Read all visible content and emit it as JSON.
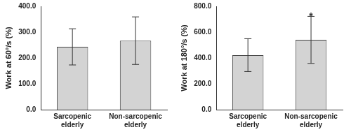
{
  "chart_data": [
    {
      "type": "bar",
      "y_label": "Work at 60°/s (%)",
      "categories": [
        "Sarcopenic elderly",
        "Non-sarcopenic elderly"
      ],
      "values": [
        243,
        267
      ],
      "errors": [
        70,
        92
      ],
      "color": "#d3d3d3",
      "ylim": [
        0,
        400
      ],
      "yticks": [
        {
          "value": 0,
          "label": "0.0"
        },
        {
          "value": 100,
          "label": "100.0"
        },
        {
          "value": 200,
          "label": "200.0"
        },
        {
          "value": 300,
          "label": "300.0"
        },
        {
          "value": 400,
          "label": "400.0"
        }
      ],
      "grid": false
    },
    {
      "type": "bar",
      "y_label": "Work at 180°/s (%)",
      "categories": [
        "Sarcopenic elderly",
        "Non-sarcopenic elderly"
      ],
      "values": [
        422,
        540
      ],
      "errors": [
        127,
        182
      ],
      "color": "#d3d3d3",
      "ylim": [
        0,
        800
      ],
      "yticks": [
        {
          "value": 0,
          "label": "0.0"
        },
        {
          "value": 200,
          "label": "200.0"
        },
        {
          "value": 400,
          "label": "400.0"
        },
        {
          "value": 600,
          "label": "600.0"
        },
        {
          "value": 800,
          "label": "800.0"
        }
      ],
      "annotations": [
        {
          "text": "*",
          "category": "Non-sarcopenic elderly"
        }
      ],
      "grid": false
    }
  ]
}
